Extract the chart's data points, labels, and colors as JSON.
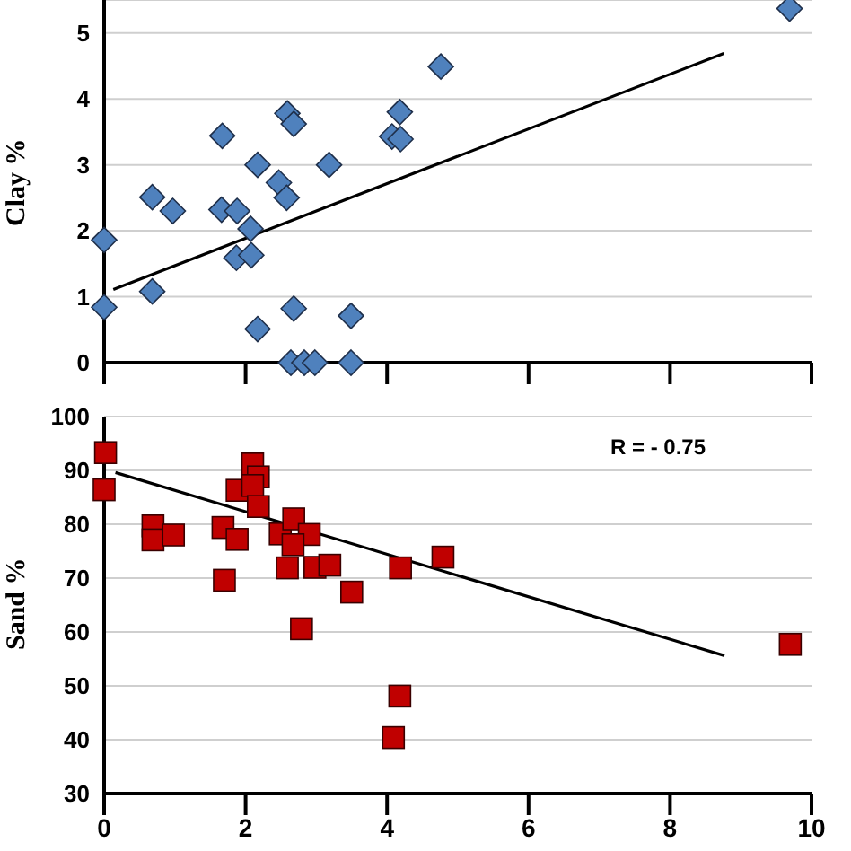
{
  "chart_data": [
    {
      "type": "scatter",
      "ylabel": "Clay  %",
      "xlim": [
        0,
        10
      ],
      "xticks": [
        0,
        2,
        4,
        6,
        8,
        10
      ],
      "ylim": [
        0,
        5.5
      ],
      "yticks": [
        0,
        1,
        2,
        3,
        4,
        5
      ],
      "grid": "y",
      "tick_labels": "y",
      "series": [
        {
          "color": "#4f81bd",
          "marker": "diamond",
          "x": [
            9.69,
            4.76,
            2.59,
            2.68,
            4.18,
            4.07,
            4.19,
            1.67,
            2.17,
            3.18,
            2.47,
            2.58,
            0.68,
            0.97,
            1.66,
            1.88,
            2.07,
            1.87,
            2.08,
            0,
            0,
            0.68,
            2.68,
            2.17,
            3.49,
            2.64,
            2.83,
            2.98,
            3.49
          ],
          "values": [
            5.37,
            4.49,
            3.78,
            3.62,
            3.8,
            3.43,
            3.39,
            3.44,
            3.0,
            3.0,
            2.73,
            2.5,
            2.51,
            2.3,
            2.32,
            2.3,
            2.03,
            1.59,
            1.63,
            1.86,
            0.84,
            1.08,
            0.82,
            0.51,
            0.71,
            0,
            0,
            0,
            0
          ]
        },
        {
          "type": "line",
          "color": "#000000",
          "marker": "none",
          "x": [
            0.13,
            8.76
          ],
          "values": [
            1.11,
            4.69
          ]
        }
      ]
    },
    {
      "type": "scatter",
      "ylabel": "Sand %",
      "xlim": [
        0,
        10
      ],
      "xticks": [
        0,
        2,
        4,
        6,
        8,
        10
      ],
      "ylim": [
        30,
        100
      ],
      "yticks": [
        30,
        40,
        50,
        60,
        70,
        80,
        90,
        100
      ],
      "grid": "y",
      "annotations": [
        "R = - 0.75"
      ],
      "series": [
        {
          "color": "#c00000",
          "marker": "square",
          "x": [
            0.02,
            0,
            0.69,
            0.69,
            0.98,
            1.68,
            1.7,
            1.88,
            1.88,
            2.1,
            2.18,
            2.1,
            2.18,
            2.49,
            2.68,
            2.9,
            2.67,
            2.59,
            2.98,
            3.19,
            2.79,
            3.5,
            4.19,
            4.79,
            4.18,
            4.09,
            9.7
          ],
          "values": [
            93.3,
            86.4,
            79.7,
            77.1,
            78.0,
            79.4,
            69.6,
            86.3,
            77.2,
            91.2,
            88.8,
            87.2,
            83.3,
            78.2,
            81.0,
            78.1,
            76.2,
            71.9,
            72.0,
            72.4,
            60.6,
            67.4,
            71.9,
            73.9,
            48.1,
            40.4,
            57.7
          ]
        },
        {
          "type": "line",
          "color": "#000000",
          "marker": "none",
          "x": [
            0.16,
            8.77
          ],
          "values": [
            89.6,
            55.6
          ]
        }
      ]
    }
  ]
}
